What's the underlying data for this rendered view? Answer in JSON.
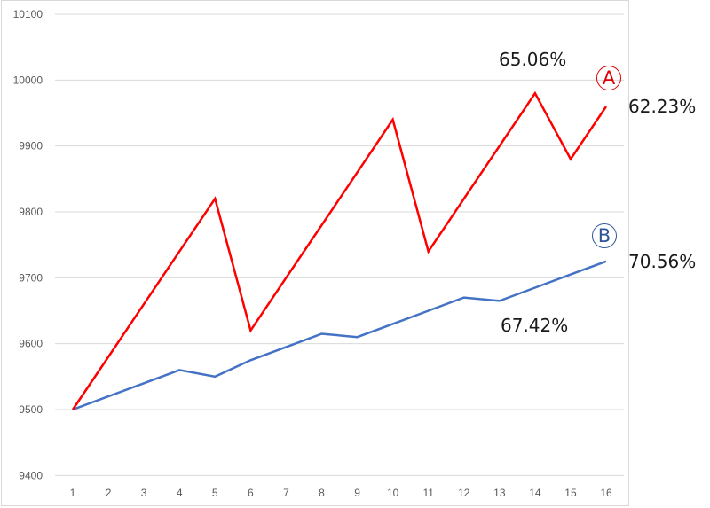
{
  "chart_data": {
    "type": "line",
    "title": "",
    "xlabel": "",
    "ylabel": "",
    "ylim": [
      9400,
      10100
    ],
    "yticks": [
      9400,
      9500,
      9600,
      9700,
      9800,
      9900,
      10000,
      10100
    ],
    "grid": true,
    "legend": "none",
    "categories": [
      1,
      2,
      3,
      4,
      5,
      6,
      7,
      8,
      9,
      10,
      11,
      12,
      13,
      14,
      15,
      16
    ],
    "series": [
      {
        "name": "A",
        "color": "#ff0000",
        "values": [
          9500,
          9580,
          9660,
          9740,
          9820,
          9620,
          9700,
          9780,
          9860,
          9940,
          9740,
          9820,
          9900,
          9980,
          9880,
          9960
        ]
      },
      {
        "name": "B",
        "color": "#4472c4",
        "values": [
          9500,
          9520,
          9540,
          9560,
          9550,
          9575,
          9595,
          9615,
          9610,
          9630,
          9650,
          9670,
          9665,
          9685,
          9705,
          9725
        ]
      }
    ],
    "annotations": [
      {
        "text": "65.06%",
        "near": "A peak at x=14"
      },
      {
        "text": "62.23%",
        "near": "A end at x=16"
      },
      {
        "text": "67.42%",
        "near": "B at x=13"
      },
      {
        "text": "70.56%",
        "near": "B end at x=16"
      },
      {
        "text": "A",
        "style": "circled",
        "color": "#e00000"
      },
      {
        "text": "B",
        "style": "circled",
        "color": "#2f5597"
      }
    ]
  },
  "labels": {
    "ann_a_peak": "65.06%",
    "ann_a_end": "62.23%",
    "ann_b_low": "67.42%",
    "ann_b_end": "70.56%",
    "marker_a": "A",
    "marker_b": "B"
  }
}
